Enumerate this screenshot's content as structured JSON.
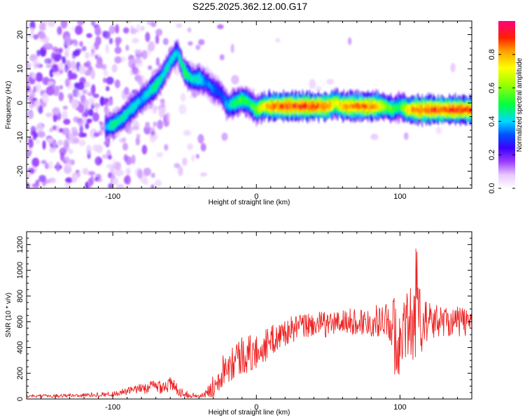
{
  "title": "S225.2025.362.12.00.G17",
  "colors": {
    "snr_line": "#ee2222",
    "frame": "#000000"
  },
  "chart_data": [
    {
      "type": "heatmap",
      "xlabel": "Height of straight line (km)",
      "ylabel": "Frequency (Hz)",
      "xlim": [
        -160,
        150
      ],
      "ylim": [
        -25,
        24
      ],
      "x_ticks": [
        -100,
        0,
        100
      ],
      "y_ticks": [
        20,
        10,
        0,
        -10,
        -20
      ],
      "colorbar": {
        "label": "Normalized spectral amplitude",
        "range": [
          0,
          1
        ],
        "ticks": [
          0.0,
          0.2,
          0.4,
          0.6,
          0.8
        ],
        "tick_labels": [
          "0.0",
          "0.2",
          "0.4",
          "0.6",
          "0.8"
        ],
        "colormap": "rainbow (white-violet-purple-blue-cyan-green-yellow-orange-red-magenta)"
      },
      "ridge": {
        "x": [
          -105,
          -100,
          -95,
          -90,
          -85,
          -80,
          -75,
          -70,
          -65,
          -60,
          -55,
          -50,
          -45,
          -40,
          -35,
          -30,
          -25,
          -20,
          -15,
          -10,
          -5,
          0,
          5,
          10,
          20,
          30,
          40,
          50,
          55,
          60,
          70,
          80,
          85,
          90,
          95,
          100,
          105,
          110,
          120,
          130,
          140,
          150
        ],
        "y": [
          -7,
          -6.5,
          -5,
          -3,
          -1,
          1,
          3,
          5,
          8,
          12,
          15,
          9,
          7,
          7,
          6,
          4,
          3,
          -1,
          0,
          1,
          0,
          -2,
          -1,
          -1,
          -1,
          -1,
          -1,
          -1,
          0,
          -1,
          -1,
          -1,
          -1,
          -1,
          -2,
          -1,
          -2,
          -2,
          -2,
          -2,
          -2,
          -2
        ],
        "amplitude": [
          0.35,
          0.5,
          0.45,
          0.45,
          0.45,
          0.4,
          0.45,
          0.5,
          0.45,
          0.45,
          0.4,
          0.55,
          0.45,
          0.45,
          0.35,
          0.35,
          0.3,
          0.4,
          0.5,
          0.55,
          0.5,
          0.6,
          0.75,
          0.85,
          0.9,
          0.9,
          0.9,
          0.85,
          0.7,
          0.8,
          0.85,
          0.85,
          0.75,
          0.6,
          0.55,
          0.5,
          0.75,
          0.85,
          0.9,
          0.9,
          0.9,
          0.9
        ]
      }
    },
    {
      "type": "line",
      "xlabel": "Height of straight line (km)",
      "ylabel": "SNR (10 * v/v)",
      "xlim": [
        -160,
        150
      ],
      "ylim": [
        0,
        1300
      ],
      "x_ticks": [
        -100,
        0,
        100
      ],
      "y_ticks": [
        0,
        200,
        400,
        600,
        800,
        1000,
        1200
      ],
      "trend": {
        "x": [
          -160,
          -120,
          -100,
          -80,
          -70,
          -60,
          -50,
          -40,
          -35,
          -30,
          -25,
          -20,
          -10,
          0,
          10,
          20,
          30,
          40,
          50,
          60,
          70,
          80,
          90,
          95,
          100,
          105,
          110,
          115,
          120,
          130,
          140,
          150
        ],
        "y": [
          20,
          30,
          40,
          80,
          100,
          110,
          40,
          20,
          40,
          100,
          200,
          280,
          340,
          360,
          450,
          520,
          560,
          580,
          580,
          600,
          600,
          600,
          620,
          600,
          580,
          550,
          620,
          600,
          600,
          610,
          600,
          600
        ],
        "noise_amplitude": [
          10,
          15,
          20,
          40,
          60,
          70,
          30,
          10,
          30,
          90,
          120,
          150,
          160,
          140,
          120,
          110,
          100,
          100,
          100,
          100,
          110,
          120,
          130,
          200,
          250,
          300,
          350,
          250,
          150,
          120,
          120,
          120
        ]
      }
    }
  ]
}
